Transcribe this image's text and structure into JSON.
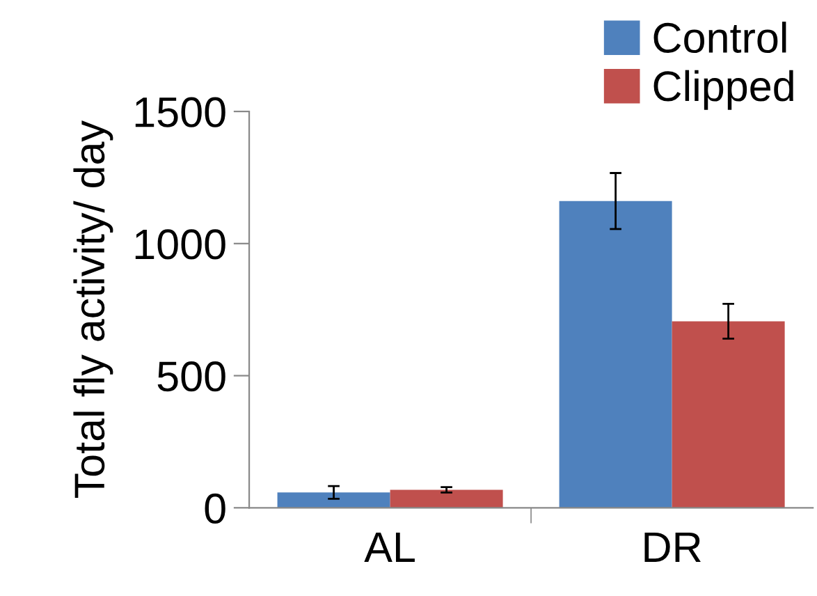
{
  "chart_data": {
    "type": "bar",
    "ylabel": "Total fly activity/ day",
    "categories": [
      "AL",
      "DR"
    ],
    "series": [
      {
        "name": "Control",
        "color": "#4f81bd",
        "values": [
          58,
          1161
        ],
        "errors": [
          24,
          106
        ]
      },
      {
        "name": "Clipped",
        "color": "#c0504d",
        "values": [
          68,
          706
        ],
        "errors": [
          10,
          66
        ]
      }
    ],
    "ylim": [
      0,
      1500
    ],
    "yticks": [
      0,
      500,
      1000,
      1500
    ],
    "grid": false,
    "legend": "top right"
  }
}
